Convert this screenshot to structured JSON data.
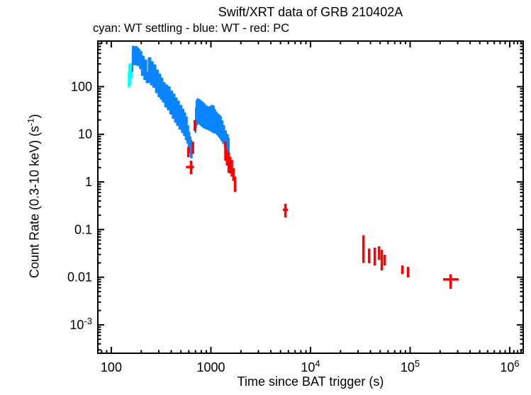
{
  "header": {
    "title": "Swift/XRT data of GRB 210402A",
    "subtitle": "cyan: WT settling - blue: WT - red: PC"
  },
  "axes": {
    "x_label": "Time since BAT trigger (s)",
    "y_label_prefix": "Count Rate (0.3-10 keV) (s",
    "y_label_sup": "-1",
    "y_label_suffix": ")"
  },
  "colors": {
    "wt_settling": "#00ffff",
    "wt": "#0a84ff",
    "pc": "#ff0000",
    "axis": "#000000",
    "background": "#ffffff"
  },
  "chart_data": {
    "type": "scatter",
    "title": "Swift/XRT data of GRB 210402A",
    "xlabel": "Time since BAT trigger (s)",
    "ylabel": "Count Rate (0.3-10 keV) (s^-1)",
    "xscale": "log",
    "yscale": "log",
    "xlim": [
      73.3,
      1365000
    ],
    "ylim": [
      0.000254,
      906
    ],
    "grid": false,
    "legend_position": "subtitle-line",
    "x_major_ticks": [
      {
        "value": 100,
        "label": "100"
      },
      {
        "value": 1000,
        "label": "1000"
      },
      {
        "value": 10000,
        "label": "10^4"
      },
      {
        "value": 100000,
        "label": "10^5"
      },
      {
        "value": 1000000,
        "label": "10^6"
      }
    ],
    "x_extra_minor_ticks": [
      1100000,
      1200000,
      1300000
    ],
    "y_major_ticks": [
      {
        "value": 100,
        "label": "100"
      },
      {
        "value": 10,
        "label": "10"
      },
      {
        "value": 1,
        "label": "1"
      },
      {
        "value": 0.1,
        "label": "0.1"
      },
      {
        "value": 0.01,
        "label": "0.01"
      },
      {
        "value": 0.001,
        "label": "10^-3"
      }
    ],
    "series": [
      {
        "name": "WT settling",
        "mode": "band",
        "color_key": "wt_settling",
        "segments": [
          [
            [
              149,
              100,
              205
            ],
            [
              153,
              110,
              290
            ],
            [
              158,
              150,
              300
            ],
            [
              161,
              160,
              290
            ]
          ]
        ]
      },
      {
        "name": "WT",
        "mode": "band",
        "color_key": "wt",
        "segments": [
          [
            [
              163,
              210,
              560
            ],
            [
              165,
              290,
              700
            ],
            [
              172,
              290,
              660
            ],
            [
              178,
              300,
              690
            ],
            [
              185,
              280,
              640
            ],
            [
              190,
              280,
              600
            ],
            [
              197,
              240,
              540
            ],
            [
              207,
              175,
              430
            ],
            [
              220,
              143,
              360
            ],
            [
              231,
              122,
              201
            ],
            [
              242,
              125,
              400
            ],
            [
              255,
              110,
              330
            ],
            [
              271,
              98,
              283
            ],
            [
              288,
              75,
              220
            ],
            [
              305,
              62,
              181
            ],
            [
              320,
              55,
              150
            ],
            [
              336,
              48,
              120
            ],
            [
              356,
              38,
              108
            ],
            [
              377,
              33,
              98
            ],
            [
              400,
              27,
              80
            ],
            [
              423,
              22,
              69
            ],
            [
              445,
              18,
              57
            ],
            [
              466,
              15.5,
              49
            ],
            [
              495,
              13,
              40
            ],
            [
              524,
              11,
              33
            ],
            [
              545,
              9.5,
              28
            ],
            [
              567,
              7.8,
              23
            ],
            [
              585,
              6.6,
              15
            ],
            [
              605,
              5.2,
              11
            ],
            [
              620,
              4.2,
              8.8
            ],
            [
              634,
              3.3,
              7.5
            ],
            [
              645,
              3.2,
              6.3
            ]
          ],
          [
            [
              700,
              11,
              20
            ],
            [
              708,
              14,
              36
            ],
            [
              720,
              16,
              51
            ],
            [
              740,
              17,
              55
            ],
            [
              760,
              17,
              53
            ],
            [
              790,
              16,
              50
            ],
            [
              815,
              14.9,
              47
            ],
            [
              850,
              14,
              44
            ],
            [
              880,
              13.5,
              40
            ],
            [
              920,
              13,
              38
            ],
            [
              953,
              12.6,
              36
            ],
            [
              990,
              12,
              38
            ],
            [
              1030,
              11.5,
              40
            ],
            [
              1056,
              11,
              39
            ],
            [
              1090,
              10.8,
              33
            ],
            [
              1127,
              10.6,
              29
            ],
            [
              1170,
              9.8,
              26.5
            ],
            [
              1210,
              9,
              25
            ],
            [
              1245,
              8.3,
              23.3
            ],
            [
              1290,
              7.4,
              19
            ],
            [
              1340,
              6.5,
              15
            ],
            [
              1397,
              5.5,
              11.7
            ],
            [
              1450,
              4.6,
              9.8
            ],
            [
              1520,
              3.8,
              8.3
            ]
          ]
        ]
      },
      {
        "name": "PC",
        "mode": "errorbar",
        "color_key": "pc",
        "points": [
          [
            595,
            586,
            604,
            4.2,
            3.3,
            5.4
          ],
          [
            632,
            562,
            676,
            2.05,
            1.45,
            2.8
          ],
          [
            660,
            646,
            674,
            5.3,
            3.9,
            7.0
          ],
          [
            690,
            679,
            701,
            15.5,
            11.7,
            20
          ],
          [
            1400,
            1382,
            1418,
            4.7,
            2.8,
            7.0
          ],
          [
            1452,
            1436,
            1468,
            3.2,
            2.2,
            4.7
          ],
          [
            1510,
            1492,
            1528,
            2.6,
            1.55,
            4.2
          ],
          [
            1565,
            1546,
            1584,
            2.3,
            1.5,
            3.4
          ],
          [
            1625,
            1606,
            1644,
            1.95,
            1.3,
            2.9
          ],
          [
            1685,
            1665,
            1705,
            1.45,
            1.05,
            1.95
          ],
          [
            1748,
            1722,
            1774,
            0.93,
            0.62,
            1.3
          ],
          [
            5600,
            5270,
            5950,
            0.26,
            0.18,
            0.35
          ],
          [
            34000,
            33300,
            34700,
            0.0374,
            0.02,
            0.076
          ],
          [
            38800,
            38000,
            39600,
            0.0275,
            0.0197,
            0.04
          ],
          [
            44200,
            43300,
            45100,
            0.0266,
            0.0177,
            0.0417
          ],
          [
            48800,
            47800,
            49800,
            0.0351,
            0.0232,
            0.0446
          ],
          [
            52000,
            51000,
            53000,
            0.024,
            0.0139,
            0.0376
          ],
          [
            55600,
            54500,
            56700,
            0.0232,
            0.0177,
            0.0296
          ],
          [
            83600,
            82000,
            85200,
            0.0143,
            0.0117,
            0.0177
          ],
          [
            95300,
            93400,
            97200,
            0.0124,
            0.0099,
            0.0165
          ],
          [
            255000,
            214000,
            307000,
            0.009,
            0.0057,
            0.0115
          ]
        ]
      }
    ]
  }
}
